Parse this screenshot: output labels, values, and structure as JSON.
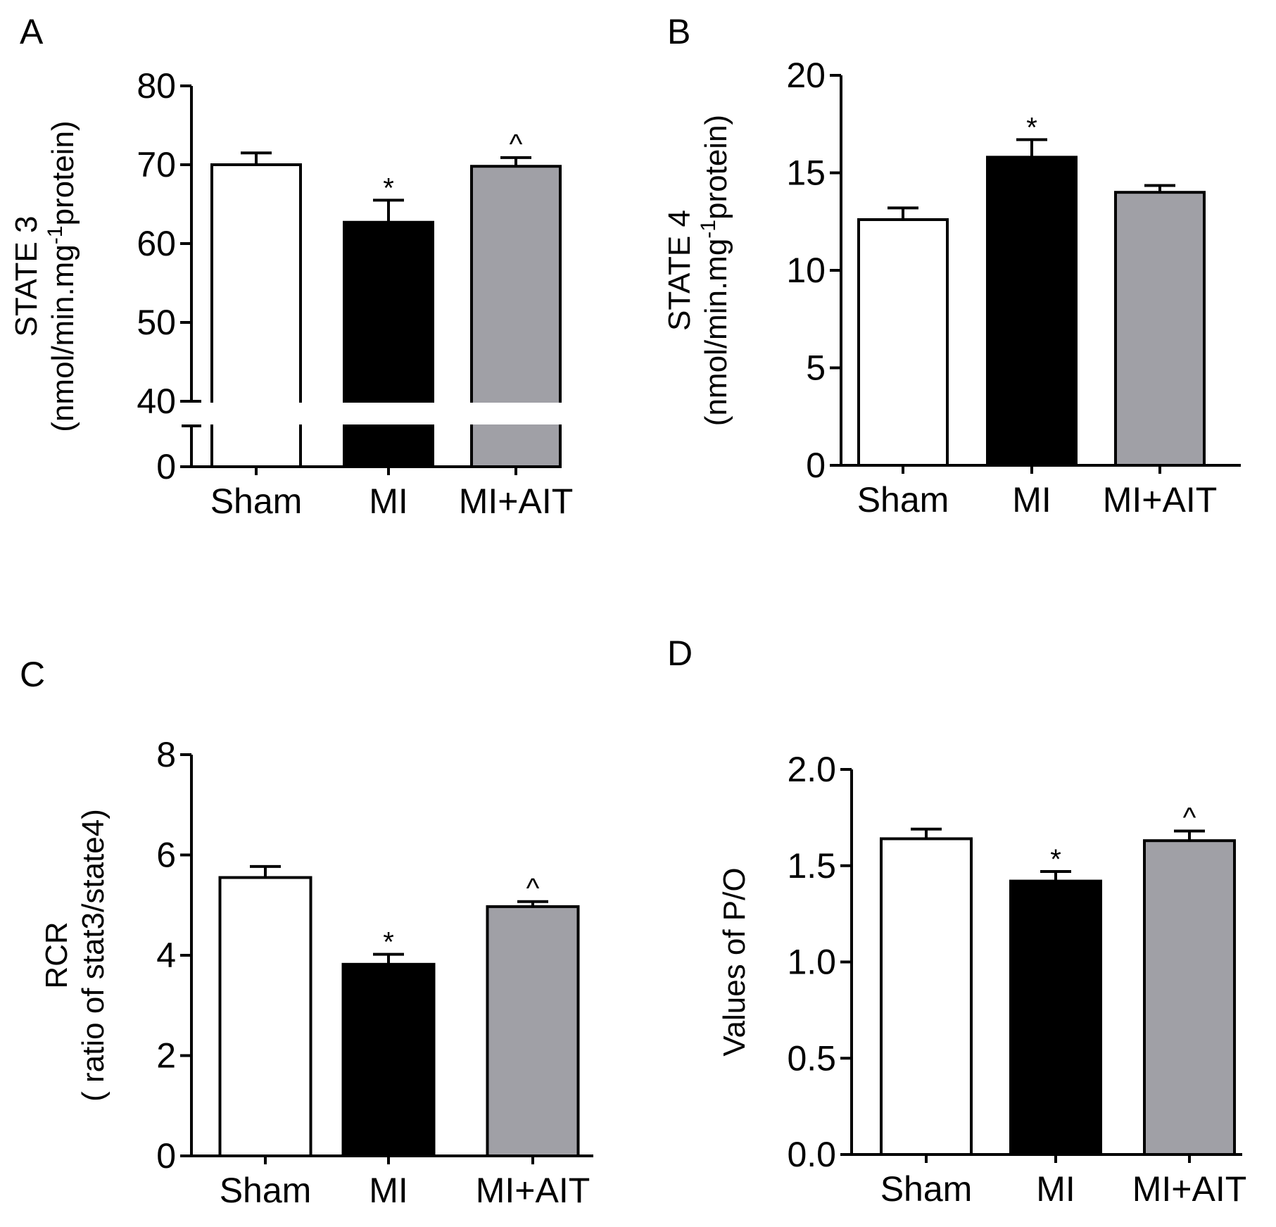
{
  "chart_data": [
    {
      "panel": "A",
      "type": "bar",
      "categories": [
        "Sham",
        "MI",
        "MI+AIT"
      ],
      "values": [
        70,
        62.7,
        69.8
      ],
      "errors": [
        1.5,
        2.8,
        1.1
      ],
      "significance": [
        "",
        "*",
        "^"
      ],
      "fill_colors": [
        "#ffffff",
        "#000000",
        "#a0a0a6"
      ],
      "ylabel_line1": "STATE 3",
      "ylabel_line2_parts": [
        "(nmol/min.mg",
        "-1",
        "protein)"
      ],
      "ylim": [
        0,
        80
      ],
      "axis_break": [
        0,
        40
      ],
      "yticks": [
        0,
        40,
        50,
        60,
        70,
        80
      ],
      "ytick_labels": [
        "0",
        "40",
        "50",
        "60",
        "70",
        "80"
      ]
    },
    {
      "panel": "B",
      "type": "bar",
      "categories": [
        "Sham",
        "MI",
        "MI+AIT"
      ],
      "values": [
        12.6,
        15.8,
        14.0
      ],
      "errors": [
        0.6,
        0.9,
        0.35
      ],
      "significance": [
        "",
        "*",
        ""
      ],
      "fill_colors": [
        "#ffffff",
        "#000000",
        "#a0a0a6"
      ],
      "ylabel_line1": "STATE 4",
      "ylabel_line2_parts": [
        "(nmol/min.mg",
        "-1",
        "protein)"
      ],
      "ylim": [
        0,
        20
      ],
      "yticks": [
        0,
        5,
        10,
        15,
        20
      ],
      "ytick_labels": [
        "0",
        "5",
        "10",
        "15",
        "20"
      ]
    },
    {
      "panel": "C",
      "type": "bar",
      "categories": [
        "Sham",
        "MI",
        "MI+AIT"
      ],
      "values": [
        5.55,
        3.82,
        4.97
      ],
      "errors": [
        0.22,
        0.2,
        0.1
      ],
      "significance": [
        "",
        "*",
        "^"
      ],
      "fill_colors": [
        "#ffffff",
        "#000000",
        "#a0a0a6"
      ],
      "ylabel_line1": "RCR",
      "ylabel_line2_parts": [
        "( ratio of stat3/state4)",
        "",
        ""
      ],
      "ylim": [
        0,
        8
      ],
      "yticks": [
        0,
        2,
        4,
        6,
        8
      ],
      "ytick_labels": [
        "0",
        "2",
        "4",
        "6",
        "8"
      ]
    },
    {
      "panel": "D",
      "type": "bar",
      "categories": [
        "Sham",
        "MI",
        "MI+AIT"
      ],
      "values": [
        1.64,
        1.42,
        1.63
      ],
      "errors": [
        0.05,
        0.05,
        0.05
      ],
      "significance": [
        "",
        "*",
        "^"
      ],
      "fill_colors": [
        "#ffffff",
        "#000000",
        "#a0a0a6"
      ],
      "ylabel_line1": "Values of P/O",
      "ylabel_line2_parts": [
        "",
        "",
        ""
      ],
      "ylim": [
        0,
        2.0
      ],
      "yticks": [
        0,
        0.5,
        1.0,
        1.5,
        2.0
      ],
      "ytick_labels": [
        "0.0",
        "0.5",
        "1.0",
        "1.5",
        "2.0"
      ]
    }
  ]
}
